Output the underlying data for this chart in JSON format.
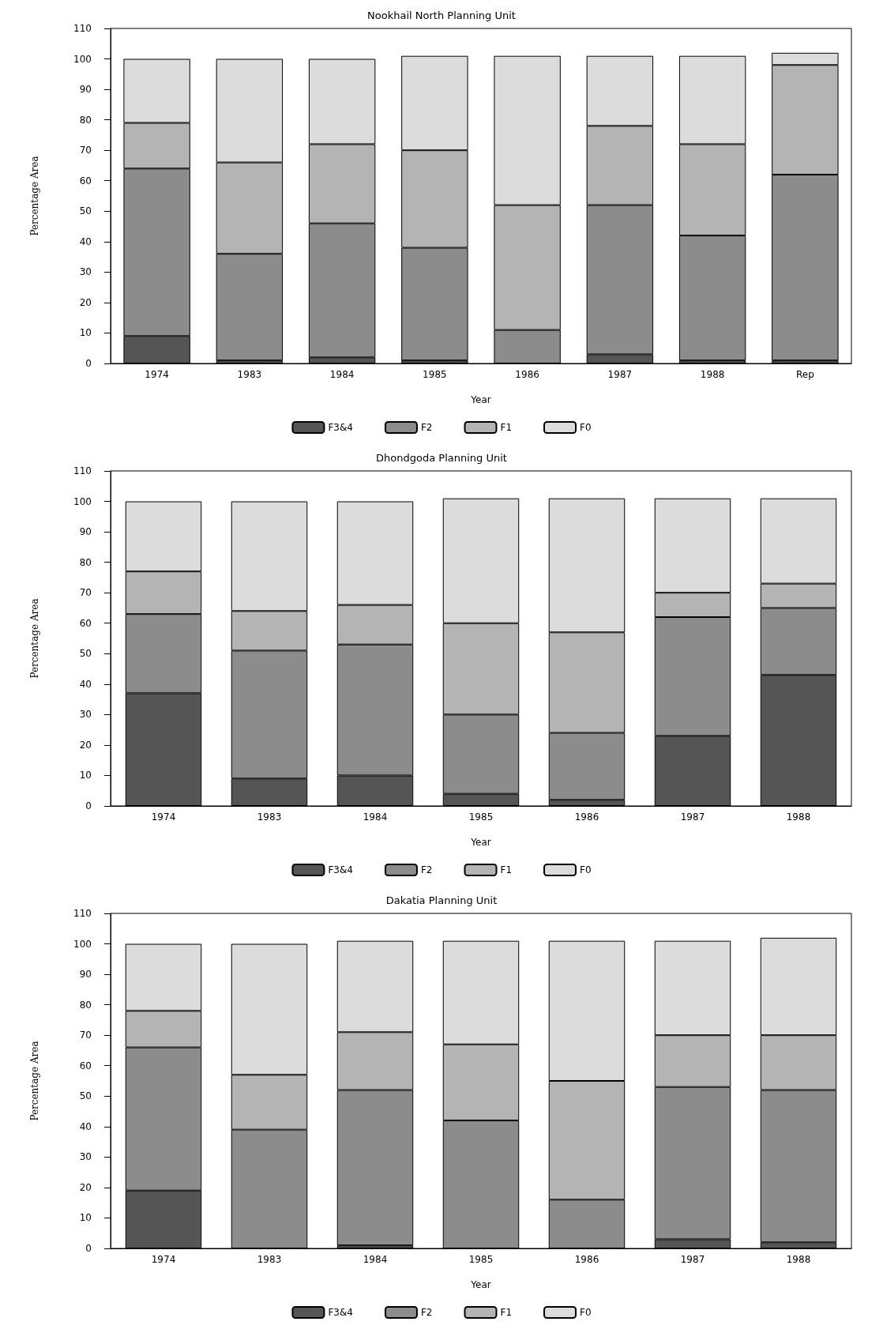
{
  "chart_data": [
    {
      "type": "bar",
      "title": "Nookhail North Planning Unit",
      "xlabel": "Year",
      "ylabel": "Percentage Area",
      "categories": [
        "1974",
        "1983",
        "1984",
        "1985",
        "1986",
        "1987",
        "1988",
        "Rep"
      ],
      "stacked": true,
      "ylim": [
        0,
        110
      ],
      "yticks": [
        0,
        10,
        20,
        30,
        40,
        50,
        60,
        70,
        80,
        90,
        100,
        110
      ],
      "grid": false,
      "legend": "bottom",
      "series": [
        {
          "name": "F3&4",
          "color": "#555555",
          "values": [
            9,
            1,
            2,
            1,
            0,
            3,
            1,
            1
          ]
        },
        {
          "name": "F2",
          "color": "#8c8c8c",
          "values": [
            55,
            35,
            44,
            37,
            11,
            49,
            41,
            61
          ]
        },
        {
          "name": "F1",
          "color": "#b4b4b4",
          "values": [
            15,
            30,
            26,
            32,
            41,
            26,
            30,
            36
          ]
        },
        {
          "name": "F0",
          "color": "#dcdcdc",
          "values": [
            21,
            34,
            28,
            31,
            49,
            23,
            29,
            4
          ]
        }
      ]
    },
    {
      "type": "bar",
      "title": "Dhondgoda Planning Unit",
      "xlabel": "Year",
      "ylabel": "Percentage Area",
      "categories": [
        "1974",
        "1983",
        "1984",
        "1985",
        "1986",
        "1987",
        "1988"
      ],
      "stacked": true,
      "ylim": [
        0,
        110
      ],
      "yticks": [
        0,
        10,
        20,
        30,
        40,
        50,
        60,
        70,
        80,
        90,
        100,
        110
      ],
      "grid": false,
      "legend": "bottom",
      "series": [
        {
          "name": "F3&4",
          "color": "#555555",
          "values": [
            37,
            9,
            10,
            4,
            2,
            23,
            43
          ]
        },
        {
          "name": "F2",
          "color": "#8c8c8c",
          "values": [
            26,
            42,
            43,
            26,
            22,
            39,
            22
          ]
        },
        {
          "name": "F1",
          "color": "#b4b4b4",
          "values": [
            14,
            13,
            13,
            30,
            33,
            8,
            8
          ]
        },
        {
          "name": "F0",
          "color": "#dcdcdc",
          "values": [
            23,
            36,
            34,
            41,
            44,
            31,
            28
          ]
        }
      ]
    },
    {
      "type": "bar",
      "title": "Dakatia Planning Unit",
      "xlabel": "Year",
      "ylabel": "Percentage Area",
      "categories": [
        "1974",
        "1983",
        "1984",
        "1985",
        "1986",
        "1987",
        "1988"
      ],
      "stacked": true,
      "ylim": [
        0,
        110
      ],
      "yticks": [
        0,
        10,
        20,
        30,
        40,
        50,
        60,
        70,
        80,
        90,
        100,
        110
      ],
      "grid": false,
      "legend": "bottom",
      "series": [
        {
          "name": "F3&4",
          "color": "#555555",
          "values": [
            19,
            0,
            1,
            0,
            0,
            3,
            2
          ]
        },
        {
          "name": "F2",
          "color": "#8c8c8c",
          "values": [
            47,
            39,
            51,
            42,
            16,
            50,
            50
          ]
        },
        {
          "name": "F1",
          "color": "#b4b4b4",
          "values": [
            12,
            18,
            19,
            25,
            39,
            17,
            18
          ]
        },
        {
          "name": "F0",
          "color": "#dcdcdc",
          "values": [
            22,
            43,
            30,
            34,
            46,
            31,
            32
          ]
        }
      ]
    }
  ]
}
